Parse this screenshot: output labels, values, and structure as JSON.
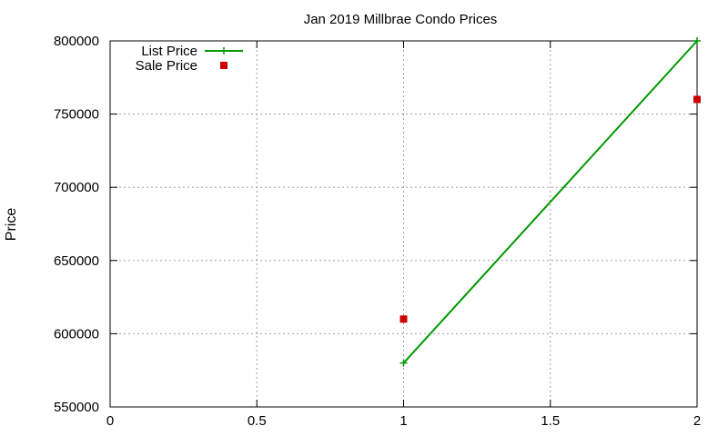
{
  "chart_data": {
    "type": "line",
    "title": "Jan 2019 Millbrae Condo Prices",
    "xlabel": "",
    "ylabel": "Price",
    "xlim": [
      0,
      2
    ],
    "ylim": [
      550000,
      800000
    ],
    "x_ticks": [
      0,
      0.5,
      1,
      1.5,
      2
    ],
    "x_tick_labels": [
      "0",
      "0.5",
      "1",
      "1.5",
      "2"
    ],
    "y_ticks": [
      550000,
      600000,
      650000,
      700000,
      750000,
      800000
    ],
    "y_tick_labels": [
      "550000",
      "600000",
      "650000",
      "700000",
      "750000",
      "800000"
    ],
    "grid": true,
    "legend_position": "top-left",
    "series": [
      {
        "name": "List Price",
        "style": "linespoints",
        "marker": "plus",
        "color": "#009900",
        "x": [
          1,
          2
        ],
        "y": [
          580000,
          800000
        ]
      },
      {
        "name": "Sale Price",
        "style": "points",
        "marker": "square",
        "color": "#cc0000",
        "x": [
          1,
          2
        ],
        "y": [
          610000,
          760000
        ]
      }
    ]
  }
}
